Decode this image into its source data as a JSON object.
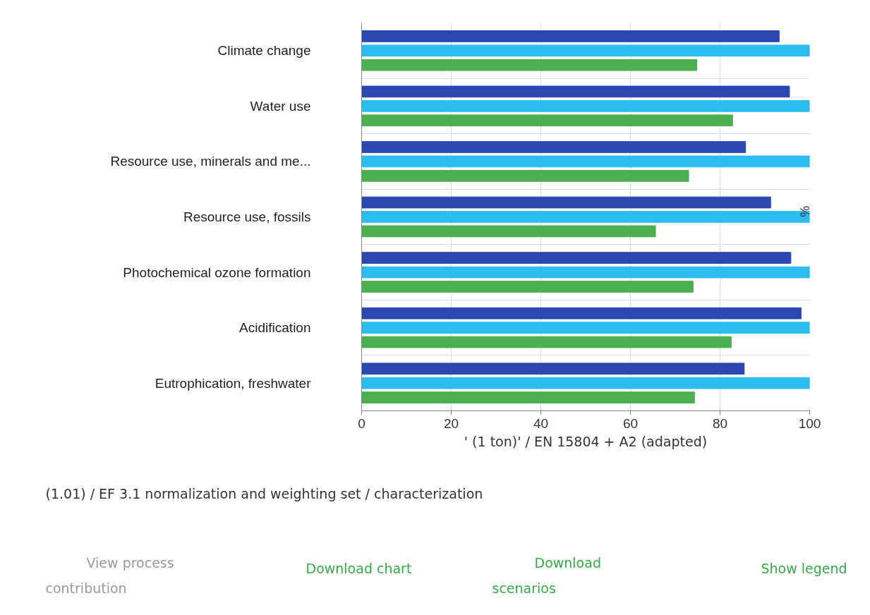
{
  "chart_data": {
    "type": "bar",
    "orientation": "horizontal",
    "categories": [
      "Climate change",
      "Water use",
      "Resource use, minerals and me...",
      "Resource use, fossils",
      "Photochemical ozone formation",
      "Acidification",
      "Eutrophication, freshwater"
    ],
    "series": [
      {
        "color": "#2a48b0",
        "values": [
          93.2,
          95.5,
          85.7,
          91.3,
          95.8,
          98.1,
          85.4
        ]
      },
      {
        "color": "#2cbdf0",
        "values": [
          100,
          100,
          100,
          100,
          100,
          100,
          100
        ]
      },
      {
        "color": "#4caf50",
        "values": [
          74.8,
          82.8,
          73.0,
          65.6,
          74.0,
          82.5,
          74.3
        ]
      }
    ],
    "xlim": [
      0,
      100
    ],
    "xticks": [
      0,
      20,
      40,
      60,
      80,
      100
    ],
    "xlabel": "' (1 ton)' / EN 15804 + A2 (adapted)",
    "annotations": [
      "%",
      "(1.01) / EF 3.1 normalization and weighting set / characterization",
      "View process contribution",
      "Download chart",
      "Download scenarios",
      "Show legend"
    ],
    "grid": true
  }
}
